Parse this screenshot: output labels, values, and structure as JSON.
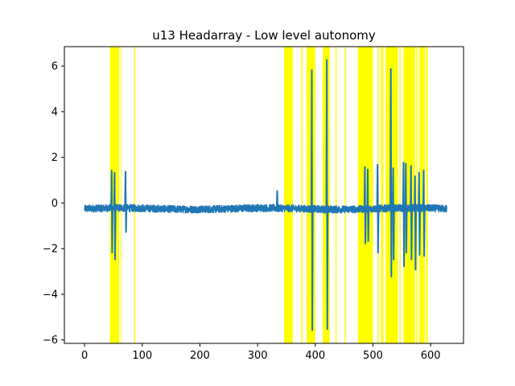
{
  "chart_data": {
    "type": "line",
    "title": "u13 Headarray - Low level autonomy",
    "xlabel": "",
    "ylabel": "",
    "xlim": [
      -35,
      657
    ],
    "ylim": [
      -6.15,
      6.85
    ],
    "x_ticks": [
      0,
      100,
      200,
      300,
      400,
      500,
      600
    ],
    "y_ticks": [
      -6,
      -4,
      -2,
      0,
      2,
      4,
      6
    ],
    "grid": false,
    "line_color": "#1f77b4",
    "highlight_color": "#ffff00",
    "highlight_intervals": [
      [
        44,
        60
      ],
      [
        63,
        64
      ],
      [
        86,
        88
      ],
      [
        346,
        361
      ],
      [
        376,
        378
      ],
      [
        385,
        400
      ],
      [
        413,
        425
      ],
      [
        435,
        437
      ],
      [
        451,
        453
      ],
      [
        474,
        500
      ],
      [
        508,
        510
      ],
      [
        514,
        518
      ],
      [
        522,
        543
      ],
      [
        546,
        548
      ],
      [
        553,
        573
      ],
      [
        575,
        577
      ],
      [
        580,
        590
      ],
      [
        592,
        595
      ]
    ],
    "series": [
      {
        "baseline": -0.25,
        "x_range": [
          0,
          628
        ],
        "spikes": [
          {
            "x": 47,
            "min": -2.2,
            "max": 1.45
          },
          {
            "x": 52,
            "min": -2.5,
            "max": 1.35
          },
          {
            "x": 71,
            "min": -1.3,
            "max": 1.4
          },
          {
            "x": 334,
            "min": -0.4,
            "max": 0.55
          },
          {
            "x": 394,
            "min": -5.6,
            "max": 5.85
          },
          {
            "x": 420,
            "min": -5.55,
            "max": 6.3
          },
          {
            "x": 486,
            "min": -1.8,
            "max": 1.6
          },
          {
            "x": 491,
            "min": -1.7,
            "max": 1.5
          },
          {
            "x": 508,
            "min": -2.2,
            "max": 1.7
          },
          {
            "x": 531,
            "min": -3.25,
            "max": 5.9
          },
          {
            "x": 535,
            "min": -2.5,
            "max": 1.55
          },
          {
            "x": 553,
            "min": -2.8,
            "max": 1.8
          },
          {
            "x": 557,
            "min": -2.2,
            "max": 1.75
          },
          {
            "x": 566,
            "min": -2.5,
            "max": 1.65
          },
          {
            "x": 573,
            "min": -2.95,
            "max": 1.2
          },
          {
            "x": 580,
            "min": -2.3,
            "max": 1.35
          },
          {
            "x": 588,
            "min": -2.35,
            "max": 1.45
          }
        ]
      }
    ]
  }
}
